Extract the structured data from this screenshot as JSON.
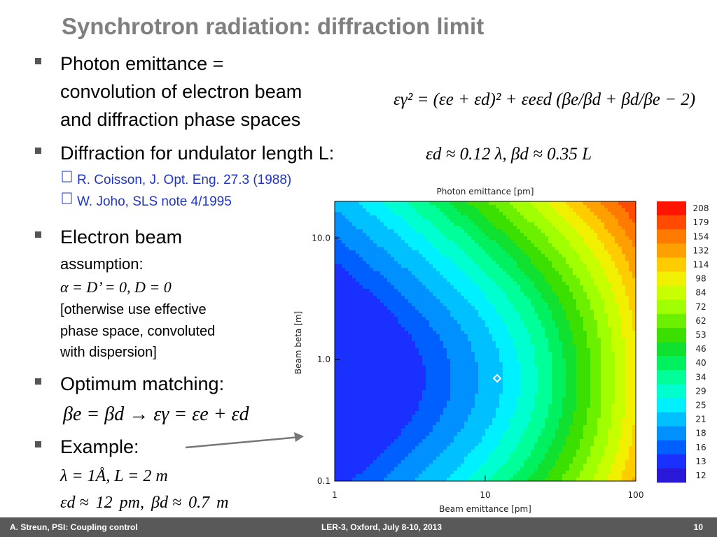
{
  "slide": {
    "title": "Synchrotron radiation: diffraction limit",
    "bullet1": {
      "lines": [
        "Photon emittance =",
        "convolution of electron beam",
        "and diffraction phase spaces"
      ],
      "equation": "εγ² = (εe + εd)² + εeεd (βe/βd + βd/βe − 2)"
    },
    "bullet2": {
      "text": "Diffraction for undulator length L:",
      "math": "εd ≈ 0.12 λ,  βd ≈ 0.35 L",
      "refs": [
        "R. Coisson, J. Opt. Eng. 27.3 (1988)",
        "W. Joho, SLS note 4/1995"
      ]
    },
    "bullet3": {
      "text": "Electron beam",
      "sub": "assumption:",
      "math": "α = D’ = 0,   D = 0",
      "note": [
        "[otherwise use effective",
        "phase space, convoluted",
        "with dispersion]"
      ]
    },
    "bullet4": {
      "text": "Optimum matching:",
      "math": "βe = βd → εγ = εe + εd"
    },
    "bullet5": {
      "text": "Example:",
      "math": "λ = 1Å,  L = 2 m",
      "result": {
        "eps_label": "εd ≈",
        "eps_d": 12,
        "eps_unit": "pm,",
        "beta_label": "βd ≈",
        "beta_d": 0.7,
        "beta_unit": "m"
      }
    },
    "footer": {
      "left": "A. Streun, PSI: Coupling control",
      "center": "LER-3, Oxford, July 8-10, 2013",
      "page": "10"
    }
  },
  "chart_data": {
    "type": "contour",
    "title": "Photon emittance [pm]",
    "x_label": "Beam emittance [pm]",
    "y_label": "Beam beta [m]",
    "log_x": true,
    "log_y": true,
    "xlim": [
      1,
      100
    ],
    "ylim": [
      0.1,
      20
    ],
    "xticks": [
      1,
      10,
      100
    ],
    "yticks": [
      0.1,
      {
        "value": 1,
        "label": "1.0"
      },
      {
        "value": 10,
        "label": "10.0"
      }
    ],
    "levels": [
      208,
      179,
      154,
      132,
      114,
      98,
      84,
      72,
      62,
      53,
      46,
      40,
      34,
      29,
      25,
      21,
      18,
      16,
      13,
      12
    ],
    "level_colors": [
      "#ff1500",
      "#ff4a00",
      "#ff7a00",
      "#ffa000",
      "#ffcc00",
      "#f0f000",
      "#c8ff00",
      "#a0ff00",
      "#6cf000",
      "#3ce000",
      "#10e030",
      "#00f060",
      "#00ff98",
      "#00ffd0",
      "#00f0ff",
      "#00c0ff",
      "#0090ff",
      "#0060ff",
      "#1a30ff",
      "#2a18d8"
    ],
    "marker_color": "#ffffff"
  }
}
